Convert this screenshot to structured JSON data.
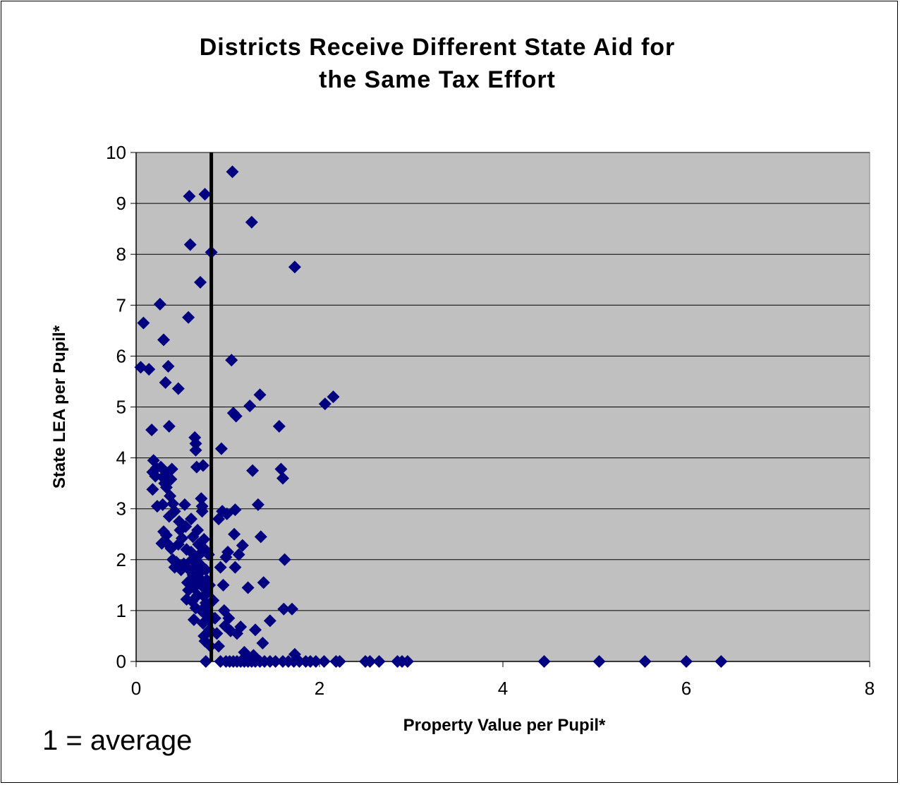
{
  "chart_data": {
    "type": "scatter",
    "title": "Districts Receive Different State Aid for\nthe Same Tax Effort",
    "xlabel": "Property Value per Pupil*",
    "ylabel": "State LEA per Pupil*",
    "note": "1 = average",
    "xlim": [
      0,
      8
    ],
    "ylim": [
      0,
      10
    ],
    "xticks": [
      "0",
      "2",
      "4",
      "6",
      "8"
    ],
    "yticks": [
      "0",
      "1",
      "2",
      "3",
      "4",
      "5",
      "6",
      "7",
      "8",
      "9",
      "10"
    ],
    "grid": "horizontal",
    "plot_background": "#c0c0c0",
    "marker_color": "#000080",
    "reference_line": {
      "x": 0.82,
      "color": "#000000"
    },
    "points": [
      [
        0.05,
        5.78
      ],
      [
        0.08,
        6.65
      ],
      [
        0.14,
        5.74
      ],
      [
        0.17,
        4.55
      ],
      [
        0.18,
        3.38
      ],
      [
        0.19,
        3.95
      ],
      [
        0.18,
        3.72
      ],
      [
        0.21,
        3.64
      ],
      [
        0.22,
        3.8
      ],
      [
        0.23,
        3.05
      ],
      [
        0.26,
        7.02
      ],
      [
        0.27,
        3.82
      ],
      [
        0.29,
        3.08
      ],
      [
        0.3,
        6.32
      ],
      [
        0.29,
        3.62
      ],
      [
        0.31,
        3.5
      ],
      [
        0.32,
        5.48
      ],
      [
        0.33,
        3.42
      ],
      [
        0.35,
        5.8
      ],
      [
        0.36,
        4.62
      ],
      [
        0.34,
        3.7
      ],
      [
        0.37,
        3.25
      ],
      [
        0.38,
        3.58
      ],
      [
        0.39,
        3.78
      ],
      [
        0.4,
        3.1
      ],
      [
        0.42,
        2.95
      ],
      [
        0.36,
        2.85
      ],
      [
        0.3,
        2.55
      ],
      [
        0.28,
        2.32
      ],
      [
        0.33,
        2.48
      ],
      [
        0.35,
        2.3
      ],
      [
        0.38,
        2.22
      ],
      [
        0.4,
        2.0
      ],
      [
        0.42,
        1.85
      ],
      [
        0.44,
        1.95
      ],
      [
        0.46,
        5.36
      ],
      [
        0.47,
        2.75
      ],
      [
        0.48,
        2.58
      ],
      [
        0.5,
        2.42
      ],
      [
        0.46,
        2.3
      ],
      [
        0.49,
        1.8
      ],
      [
        0.52,
        1.92
      ],
      [
        0.53,
        3.08
      ],
      [
        0.54,
        2.65
      ],
      [
        0.55,
        2.2
      ],
      [
        0.56,
        1.55
      ],
      [
        0.57,
        6.76
      ],
      [
        0.58,
        9.14
      ],
      [
        0.59,
        8.19
      ],
      [
        0.6,
        2.8
      ],
      [
        0.61,
        2.0
      ],
      [
        0.62,
        1.7
      ],
      [
        0.63,
        1.45
      ],
      [
        0.64,
        4.4
      ],
      [
        0.65,
        4.28
      ],
      [
        0.65,
        4.15
      ],
      [
        0.66,
        3.82
      ],
      [
        0.67,
        2.58
      ],
      [
        0.68,
        2.3
      ],
      [
        0.69,
        2.1
      ],
      [
        0.7,
        7.45
      ],
      [
        0.7,
        1.9
      ],
      [
        0.71,
        3.2
      ],
      [
        0.72,
        3.05
      ],
      [
        0.72,
        2.95
      ],
      [
        0.73,
        3.85
      ],
      [
        0.74,
        2.4
      ],
      [
        0.75,
        9.18
      ],
      [
        0.75,
        2.2
      ],
      [
        0.76,
        1.8
      ],
      [
        0.77,
        1.6
      ],
      [
        0.77,
        1.35
      ],
      [
        0.78,
        1.1
      ],
      [
        0.78,
        0.88
      ],
      [
        0.79,
        2.1
      ],
      [
        0.8,
        1.5
      ],
      [
        0.8,
        0.62
      ],
      [
        0.81,
        0.3
      ],
      [
        0.82,
        8.04
      ],
      [
        0.55,
        1.22
      ],
      [
        0.57,
        1.4
      ],
      [
        0.59,
        1.6
      ],
      [
        0.61,
        1.18
      ],
      [
        0.63,
        0.82
      ],
      [
        0.65,
        1.05
      ],
      [
        0.67,
        1.3
      ],
      [
        0.69,
        1.55
      ],
      [
        0.71,
        1.0
      ],
      [
        0.73,
        0.75
      ],
      [
        0.74,
        0.5
      ],
      [
        0.75,
        0.4
      ],
      [
        0.76,
        0.0
      ],
      [
        0.58,
        1.8
      ],
      [
        0.6,
        2.15
      ],
      [
        0.62,
        2.45
      ],
      [
        0.64,
        2.02
      ],
      [
        0.66,
        1.88
      ],
      [
        0.68,
        1.72
      ],
      [
        0.7,
        1.62
      ],
      [
        0.72,
        1.48
      ],
      [
        0.74,
        1.28
      ],
      [
        0.76,
        1.15
      ],
      [
        0.78,
        0.95
      ],
      [
        0.8,
        0.8
      ],
      [
        0.84,
        1.2
      ],
      [
        0.86,
        0.85
      ],
      [
        0.88,
        0.55
      ],
      [
        0.9,
        0.3
      ],
      [
        0.9,
        2.8
      ],
      [
        0.92,
        1.85
      ],
      [
        0.93,
        4.18
      ],
      [
        0.94,
        2.95
      ],
      [
        0.95,
        1.5
      ],
      [
        0.96,
        1.0
      ],
      [
        0.97,
        0.7
      ],
      [
        0.98,
        2.05
      ],
      [
        0.99,
        2.9
      ],
      [
        1.0,
        2.15
      ],
      [
        1.01,
        0.85
      ],
      [
        1.03,
        0.6
      ],
      [
        1.04,
        5.92
      ],
      [
        1.05,
        9.62
      ],
      [
        1.06,
        4.88
      ],
      [
        1.07,
        2.5
      ],
      [
        1.08,
        1.85
      ],
      [
        1.08,
        2.98
      ],
      [
        1.09,
        4.82
      ],
      [
        1.1,
        0.55
      ],
      [
        1.12,
        2.1
      ],
      [
        1.14,
        0.68
      ],
      [
        1.16,
        2.28
      ],
      [
        1.18,
        0.18
      ],
      [
        1.2,
        0.1
      ],
      [
        1.22,
        1.45
      ],
      [
        1.24,
        5.02
      ],
      [
        1.26,
        8.63
      ],
      [
        1.27,
        3.75
      ],
      [
        1.28,
        0.12
      ],
      [
        1.3,
        0.62
      ],
      [
        1.33,
        3.08
      ],
      [
        1.35,
        5.24
      ],
      [
        1.36,
        2.45
      ],
      [
        1.38,
        0.36
      ],
      [
        1.39,
        1.55
      ],
      [
        1.46,
        0.8
      ],
      [
        1.56,
        4.62
      ],
      [
        1.58,
        3.78
      ],
      [
        1.6,
        3.6
      ],
      [
        1.61,
        1.03
      ],
      [
        1.62,
        2.0
      ],
      [
        1.7,
        1.03
      ],
      [
        1.73,
        7.75
      ],
      [
        1.73,
        0.14
      ],
      [
        2.06,
        5.06
      ],
      [
        2.15,
        5.2
      ],
      [
        0.92,
        0.0
      ],
      [
        0.98,
        0.0
      ],
      [
        1.02,
        0.0
      ],
      [
        1.06,
        0.0
      ],
      [
        1.1,
        0.0
      ],
      [
        1.14,
        0.0
      ],
      [
        1.18,
        0.0
      ],
      [
        1.22,
        0.0
      ],
      [
        1.26,
        0.0
      ],
      [
        1.3,
        0.0
      ],
      [
        1.35,
        0.0
      ],
      [
        1.4,
        0.0
      ],
      [
        1.46,
        0.0
      ],
      [
        1.52,
        0.0
      ],
      [
        1.6,
        0.0
      ],
      [
        1.66,
        0.0
      ],
      [
        1.72,
        0.0
      ],
      [
        1.78,
        0.0
      ],
      [
        1.85,
        0.0
      ],
      [
        1.9,
        0.0
      ],
      [
        1.96,
        0.0
      ],
      [
        2.05,
        0.0
      ],
      [
        2.18,
        0.0
      ],
      [
        2.22,
        0.0
      ],
      [
        2.5,
        0.0
      ],
      [
        2.55,
        0.0
      ],
      [
        2.65,
        0.0
      ],
      [
        2.85,
        0.0
      ],
      [
        2.9,
        0.0
      ],
      [
        2.96,
        0.0
      ],
      [
        4.45,
        0.0
      ],
      [
        5.05,
        0.0
      ],
      [
        5.55,
        0.0
      ],
      [
        6.0,
        0.0
      ],
      [
        6.38,
        0.0
      ]
    ]
  }
}
